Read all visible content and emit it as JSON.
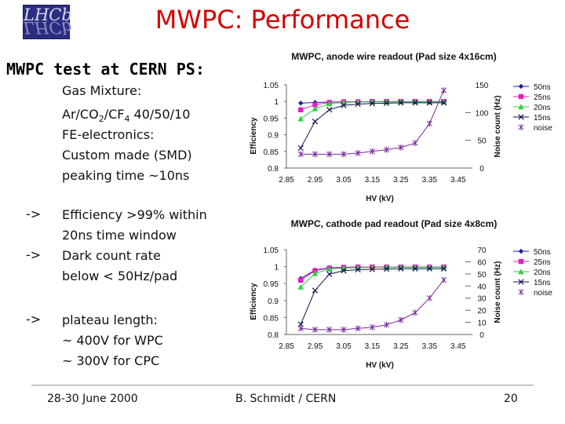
{
  "logo": {
    "text": "LHCb"
  },
  "slide": {
    "title": "MWPC:  Performance",
    "subtitle": "MWPC test at CERN PS:",
    "gas_label": "Gas Mixture:",
    "gas_mix_prefix": "Ar/CO",
    "gas_mix_sub1": "2",
    "gas_mix_mid": "/CF",
    "gas_mix_sub2": "4",
    "gas_mix_suffix": " 40/50/10",
    "fe_label": "FE-electronics:",
    "fe_line1": "Custom made (SMD)",
    "fe_line2": "peaking time ~10ns",
    "bullets": [
      {
        "arrow": "->",
        "line1": "Efficiency >99% within",
        "line2": "20ns time window"
      },
      {
        "arrow": "->",
        "line1": "Dark count rate",
        "line2": "below < 50Hz/pad"
      },
      {
        "arrow": "->",
        "line1": "plateau length:",
        "line2": "~ 400V for WPC",
        "line3": "~ 300V for CPC"
      }
    ]
  },
  "footer": {
    "date": "28-30 June 2000",
    "author": "B. Schmidt / CERN",
    "page": "20"
  },
  "colors": {
    "s50": "#1a1aa0",
    "s25": "#e020c0",
    "s20": "#30d040",
    "s15": "#101050",
    "noise": "#7a2a9a"
  },
  "chart_data": [
    {
      "type": "line",
      "title": "MWPC, anode wire readout (Pad size 4x16cm)",
      "xlabel": "HV (kV)",
      "ylabel": "Efficiency",
      "y2label": "Noise count (Hz)",
      "xlim": [
        2.85,
        3.5
      ],
      "ylim": [
        0.8,
        1.05
      ],
      "y2lim": [
        0,
        150
      ],
      "xticks": [
        "2.85",
        "2.95",
        "3.05",
        "3.15",
        "3.25",
        "3.35",
        "3.45"
      ],
      "yticks": [
        "1.05",
        "1",
        "0.95",
        "0.9",
        "0.85",
        "0.8"
      ],
      "y2ticks": [
        "150",
        "100",
        "50",
        "0"
      ],
      "x": [
        2.9,
        2.95,
        3.0,
        3.05,
        3.1,
        3.15,
        3.2,
        3.25,
        3.3,
        3.35,
        3.4
      ],
      "series": [
        {
          "name": "50ns",
          "marker": "diamond",
          "values": [
            0.995,
            0.997,
            0.998,
            0.999,
            0.999,
            0.999,
            0.999,
            0.999,
            0.999,
            0.999,
            0.999
          ]
        },
        {
          "name": "25ns",
          "marker": "square",
          "values": [
            0.975,
            0.99,
            0.997,
            0.999,
            0.999,
            1.0,
            1.0,
            1.0,
            1.0,
            1.0,
            1.0
          ]
        },
        {
          "name": "20ns",
          "marker": "triangle",
          "values": [
            0.948,
            0.978,
            0.993,
            0.997,
            0.998,
            0.999,
            0.999,
            0.999,
            0.999,
            0.999,
            0.999
          ]
        },
        {
          "name": "15ns",
          "marker": "x",
          "values": [
            0.86,
            0.94,
            0.975,
            0.988,
            0.992,
            0.994,
            0.995,
            0.996,
            0.996,
            0.996,
            0.996
          ]
        },
        {
          "name": "noise",
          "marker": "star",
          "axis": "y2",
          "values": [
            25,
            25,
            25,
            25,
            27,
            30,
            33,
            37,
            45,
            80,
            140
          ]
        }
      ]
    },
    {
      "type": "line",
      "title": "MWPC, cathode pad readout (Pad size 4x8cm)",
      "xlabel": "HV (kV)",
      "ylabel": "Efficiency",
      "y2label": "Noise count (Hz)",
      "xlim": [
        2.85,
        3.5
      ],
      "ylim": [
        0.8,
        1.05
      ],
      "y2lim": [
        0,
        70
      ],
      "xticks": [
        "2.85",
        "2.95",
        "3.05",
        "3.15",
        "3.25",
        "3.35",
        "3.45"
      ],
      "yticks": [
        "1.05",
        "1",
        "0.95",
        "0.9",
        "0.85",
        "0.8"
      ],
      "y2ticks": [
        "70",
        "60",
        "50",
        "40",
        "30",
        "20",
        "10",
        "0"
      ],
      "x": [
        2.9,
        2.95,
        3.0,
        3.05,
        3.1,
        3.15,
        3.2,
        3.25,
        3.3,
        3.35,
        3.4
      ],
      "series": [
        {
          "name": "50ns",
          "marker": "diamond",
          "values": [
            0.965,
            0.99,
            0.997,
            0.998,
            0.999,
            0.999,
            0.999,
            0.999,
            0.999,
            0.999,
            0.999
          ]
        },
        {
          "name": "25ns",
          "marker": "square",
          "values": [
            0.96,
            0.988,
            0.996,
            0.998,
            0.999,
            0.999,
            0.999,
            0.999,
            0.999,
            0.999,
            0.999
          ]
        },
        {
          "name": "20ns",
          "marker": "triangle",
          "values": [
            0.94,
            0.98,
            0.993,
            0.996,
            0.997,
            0.998,
            0.998,
            0.998,
            0.998,
            0.998,
            0.998
          ]
        },
        {
          "name": "15ns",
          "marker": "x",
          "values": [
            0.83,
            0.93,
            0.978,
            0.988,
            0.991,
            0.992,
            0.993,
            0.994,
            0.994,
            0.994,
            0.994
          ]
        },
        {
          "name": "noise",
          "marker": "star",
          "axis": "y2",
          "values": [
            5,
            4,
            4,
            4,
            5,
            6,
            8,
            12,
            18,
            30,
            45
          ]
        }
      ]
    }
  ]
}
